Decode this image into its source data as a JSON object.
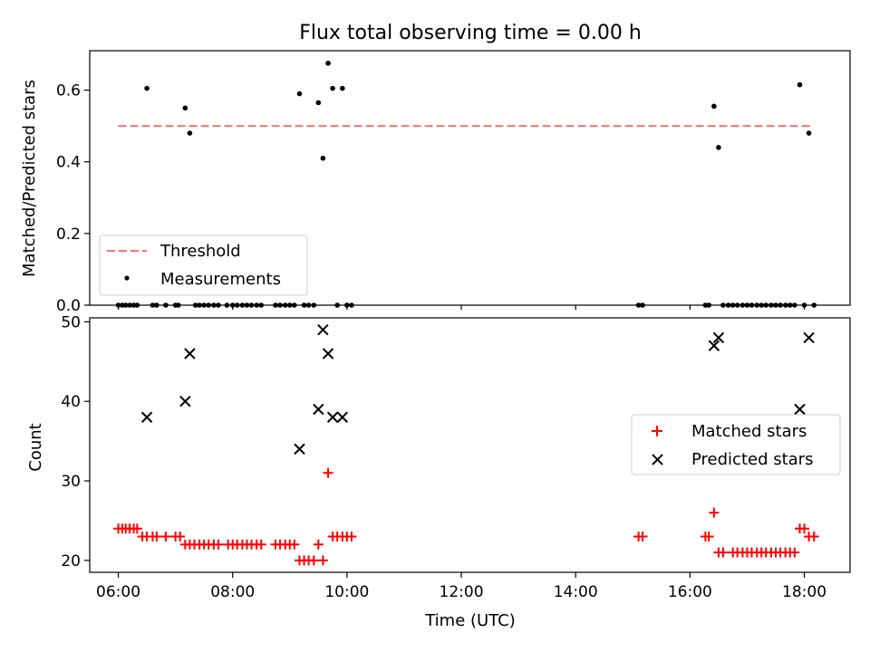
{
  "figure_title": "Flux total observing time = 0.00 h",
  "colors": {
    "threshold": "#ff7070",
    "measurements": "#000000",
    "matched": "#ff0000",
    "predicted": "#000000"
  },
  "chart_data": [
    {
      "type": "scatter",
      "ylabel": "Matched/Predicted stars",
      "xlim": [
        5.5,
        18.8
      ],
      "ylim": [
        0,
        0.71
      ],
      "yticks": [
        0.0,
        0.2,
        0.4,
        0.6
      ],
      "ytick_labels": [
        "0.0",
        "0.2",
        "0.4",
        "0.6"
      ],
      "legend_position": "lower-left",
      "threshold": {
        "name": "Threshold",
        "value": 0.5,
        "x": [
          6.0,
          18.1
        ]
      },
      "series": [
        {
          "name": "Measurements",
          "points": [
            [
              6.0,
              0
            ],
            [
              6.07,
              0
            ],
            [
              6.13,
              0
            ],
            [
              6.2,
              0
            ],
            [
              6.27,
              0
            ],
            [
              6.33,
              0
            ],
            [
              6.5,
              0.605
            ],
            [
              6.6,
              0
            ],
            [
              6.67,
              0
            ],
            [
              6.83,
              0
            ],
            [
              7.0,
              0
            ],
            [
              7.05,
              0
            ],
            [
              7.17,
              0.55
            ],
            [
              7.25,
              0.48
            ],
            [
              7.35,
              0
            ],
            [
              7.42,
              0
            ],
            [
              7.5,
              0
            ],
            [
              7.58,
              0
            ],
            [
              7.67,
              0
            ],
            [
              7.75,
              0
            ],
            [
              7.9,
              0
            ],
            [
              8.0,
              0
            ],
            [
              8.08,
              0
            ],
            [
              8.17,
              0
            ],
            [
              8.25,
              0
            ],
            [
              8.33,
              0
            ],
            [
              8.42,
              0
            ],
            [
              8.5,
              0
            ],
            [
              8.75,
              0
            ],
            [
              8.83,
              0
            ],
            [
              8.92,
              0
            ],
            [
              9.0,
              0
            ],
            [
              9.08,
              0
            ],
            [
              9.17,
              0.59
            ],
            [
              9.25,
              0
            ],
            [
              9.33,
              0
            ],
            [
              9.42,
              0
            ],
            [
              9.5,
              0.565
            ],
            [
              9.58,
              0.41
            ],
            [
              9.67,
              0.675
            ],
            [
              9.75,
              0.605
            ],
            [
              9.83,
              0
            ],
            [
              9.92,
              0.605
            ],
            [
              10.0,
              0
            ],
            [
              10.08,
              0
            ],
            [
              15.1,
              0
            ],
            [
              15.17,
              0
            ],
            [
              16.27,
              0
            ],
            [
              16.33,
              0
            ],
            [
              16.42,
              0.555
            ],
            [
              16.5,
              0.44
            ],
            [
              16.58,
              0
            ],
            [
              16.67,
              0
            ],
            [
              16.75,
              0
            ],
            [
              16.83,
              0
            ],
            [
              16.92,
              0
            ],
            [
              17.0,
              0
            ],
            [
              17.08,
              0
            ],
            [
              17.17,
              0
            ],
            [
              17.25,
              0
            ],
            [
              17.33,
              0
            ],
            [
              17.42,
              0
            ],
            [
              17.5,
              0
            ],
            [
              17.58,
              0
            ],
            [
              17.67,
              0
            ],
            [
              17.75,
              0
            ],
            [
              17.83,
              0
            ],
            [
              17.92,
              0.615
            ],
            [
              18.0,
              0
            ],
            [
              18.08,
              0.48
            ],
            [
              18.17,
              0
            ]
          ]
        }
      ]
    },
    {
      "type": "scatter",
      "xlabel": "Time (UTC)",
      "ylabel": "Count",
      "xlim": [
        5.5,
        18.8
      ],
      "ylim": [
        18.5,
        50.5
      ],
      "xticks": [
        6,
        8,
        10,
        12,
        14,
        16,
        18
      ],
      "xtick_labels": [
        "06:00",
        "08:00",
        "10:00",
        "12:00",
        "14:00",
        "16:00",
        "18:00"
      ],
      "yticks": [
        20,
        30,
        40,
        50
      ],
      "ytick_labels": [
        "20",
        "30",
        "40",
        "50"
      ],
      "legend_position": "center-right",
      "series": [
        {
          "name": "Matched stars",
          "points": [
            [
              6.0,
              24
            ],
            [
              6.07,
              24
            ],
            [
              6.13,
              24
            ],
            [
              6.2,
              24
            ],
            [
              6.27,
              24
            ],
            [
              6.33,
              24
            ],
            [
              6.42,
              23
            ],
            [
              6.5,
              23
            ],
            [
              6.6,
              23
            ],
            [
              6.67,
              23
            ],
            [
              6.83,
              23
            ],
            [
              7.0,
              23
            ],
            [
              7.08,
              23
            ],
            [
              7.17,
              22
            ],
            [
              7.25,
              22
            ],
            [
              7.33,
              22
            ],
            [
              7.42,
              22
            ],
            [
              7.5,
              22
            ],
            [
              7.58,
              22
            ],
            [
              7.67,
              22
            ],
            [
              7.75,
              22
            ],
            [
              7.92,
              22
            ],
            [
              8.0,
              22
            ],
            [
              8.08,
              22
            ],
            [
              8.17,
              22
            ],
            [
              8.25,
              22
            ],
            [
              8.33,
              22
            ],
            [
              8.42,
              22
            ],
            [
              8.5,
              22
            ],
            [
              8.75,
              22
            ],
            [
              8.83,
              22
            ],
            [
              8.92,
              22
            ],
            [
              9.0,
              22
            ],
            [
              9.08,
              22
            ],
            [
              9.17,
              20
            ],
            [
              9.25,
              20
            ],
            [
              9.33,
              20
            ],
            [
              9.42,
              20
            ],
            [
              9.5,
              22
            ],
            [
              9.58,
              20
            ],
            [
              9.67,
              31
            ],
            [
              9.75,
              23
            ],
            [
              9.83,
              23
            ],
            [
              9.92,
              23
            ],
            [
              10.0,
              23
            ],
            [
              10.08,
              23
            ],
            [
              15.1,
              23
            ],
            [
              15.17,
              23
            ],
            [
              16.27,
              23
            ],
            [
              16.33,
              23
            ],
            [
              16.42,
              26
            ],
            [
              16.5,
              21
            ],
            [
              16.58,
              21
            ],
            [
              16.75,
              21
            ],
            [
              16.83,
              21
            ],
            [
              16.92,
              21
            ],
            [
              17.0,
              21
            ],
            [
              17.08,
              21
            ],
            [
              17.17,
              21
            ],
            [
              17.25,
              21
            ],
            [
              17.33,
              21
            ],
            [
              17.42,
              21
            ],
            [
              17.5,
              21
            ],
            [
              17.58,
              21
            ],
            [
              17.67,
              21
            ],
            [
              17.75,
              21
            ],
            [
              17.83,
              21
            ],
            [
              17.92,
              24
            ],
            [
              18.0,
              24
            ],
            [
              18.08,
              23
            ],
            [
              18.17,
              23
            ]
          ]
        },
        {
          "name": "Predicted stars",
          "points": [
            [
              6.5,
              38
            ],
            [
              7.17,
              40
            ],
            [
              7.25,
              46
            ],
            [
              9.17,
              34
            ],
            [
              9.5,
              39
            ],
            [
              9.58,
              49
            ],
            [
              9.67,
              46
            ],
            [
              9.75,
              38
            ],
            [
              9.92,
              38
            ],
            [
              16.42,
              47
            ],
            [
              16.5,
              48
            ],
            [
              17.92,
              39
            ],
            [
              18.08,
              48
            ]
          ]
        }
      ]
    }
  ]
}
